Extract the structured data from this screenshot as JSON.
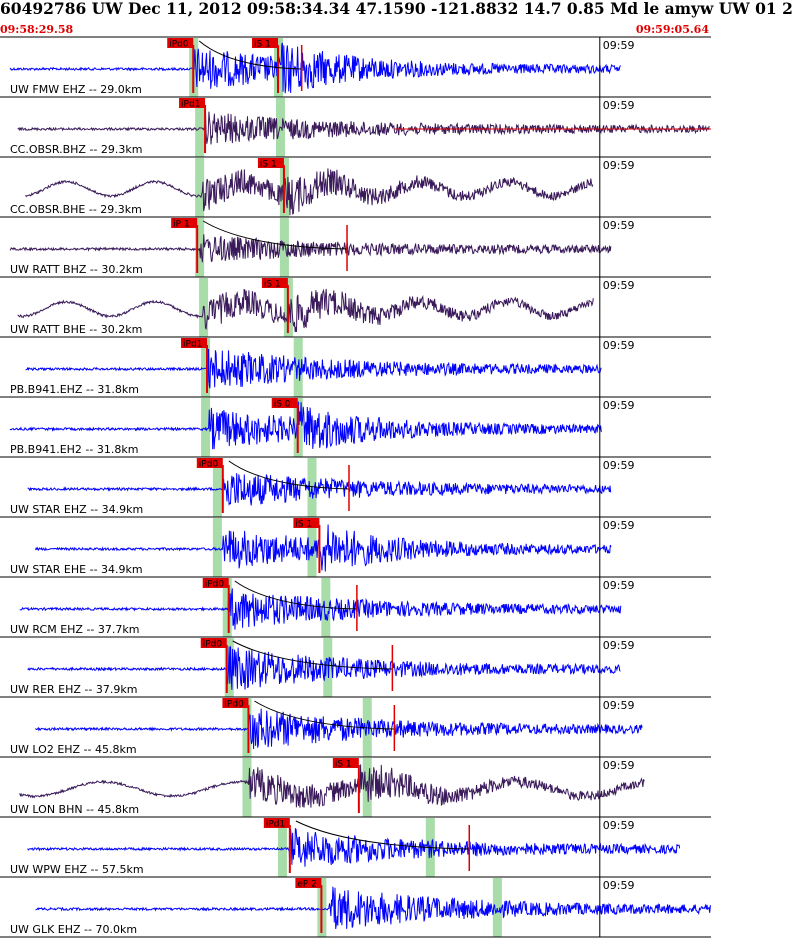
{
  "header": {
    "title": "60492786 UW Dec 11, 2012 09:58:34.34    47.1590 -121.8832 14.7 0.85 Md le amyw UW 01    2",
    "start_time": "09:58:29.58",
    "end_time": "09:59:05.64"
  },
  "colors": {
    "trace_blue": "#0000ff",
    "trace_purple": "#3a1a5a",
    "pick_red": "#e00000",
    "window_green": "#a8dca8",
    "header_red": "#e00000"
  },
  "chart_data": {
    "type": "line",
    "title": "60492786 UW Dec 11, 2012 09:58:34.34",
    "x_range": [
      "09:58:29.58",
      "09:59:05.64"
    ],
    "tick_label": "09:59",
    "series": [
      {
        "station": "UW FMW EHZ -- 29.0km",
        "distance_km": 29.0,
        "color": "blue",
        "onset_s": 9.8,
        "end_s": 31.5,
        "amp": 0.32,
        "p_pick": {
          "label": "iPd0",
          "t_s": 9.8
        },
        "s_pick": {
          "label": "iS 1",
          "t_s": 14.1
        },
        "green_windows_s": [
          9.8,
          14.1
        ],
        "coda_marker_s": 15.3
      },
      {
        "station": "CC.OBSR.BHZ -- 29.3km",
        "distance_km": 29.3,
        "color": "purple",
        "onset_s": 10.4,
        "end_s": 36.0,
        "amp": 0.24,
        "p_pick": {
          "label": "iPd1",
          "t_s": 10.4
        },
        "s_pick": null,
        "green_windows_s": [
          10.1,
          14.2
        ],
        "red_tail_from_s": 20.0
      },
      {
        "station": "CC.OBSR.BHE -- 29.3km",
        "distance_km": 29.3,
        "color": "purple",
        "onset_s": 10.2,
        "end_s": 30.1,
        "amp": 0.22,
        "p_pick": null,
        "s_pick": {
          "label": "iS 1",
          "t_s": 14.4
        },
        "green_windows_s": [
          10.1,
          14.4
        ]
      },
      {
        "station": "UW RATT BHZ -- 30.2km",
        "distance_km": 30.2,
        "color": "purple",
        "onset_s": 10.1,
        "end_s": 31.0,
        "amp": 0.2,
        "p_pick": {
          "label": "iP 1",
          "t_s": 10.0
        },
        "s_pick": null,
        "green_windows_s": [
          10.1,
          14.4
        ],
        "coda_marker_s": 17.6
      },
      {
        "station": "UW RATT BHE -- 30.2km",
        "distance_km": 30.2,
        "color": "purple",
        "onset_s": 10.3,
        "end_s": 30.1,
        "amp": 0.22,
        "p_pick": null,
        "s_pick": {
          "label": "iS 1",
          "t_s": 14.6
        },
        "green_windows_s": [
          10.3,
          14.6
        ]
      },
      {
        "station": "PB.B941.EHZ -- 31.8km",
        "distance_km": 31.8,
        "color": "blue",
        "onset_s": 10.5,
        "end_s": 30.5,
        "amp": 0.32,
        "p_pick": {
          "label": "iPd1",
          "t_s": 10.5
        },
        "s_pick": null,
        "green_windows_s": [
          10.4,
          15.1
        ]
      },
      {
        "station": "PB.B941.EH2 -- 31.8km",
        "distance_km": 31.8,
        "color": "blue",
        "onset_s": 10.6,
        "end_s": 30.5,
        "amp": 0.3,
        "p_pick": null,
        "s_pick": {
          "label": "iS 0",
          "t_s": 15.1
        },
        "green_windows_s": [
          10.4,
          15.1
        ]
      },
      {
        "station": "UW STAR EHZ -- 34.9km",
        "distance_km": 34.9,
        "color": "blue",
        "onset_s": 11.3,
        "end_s": 31.0,
        "amp": 0.28,
        "p_pick": {
          "label": "iPd0",
          "t_s": 11.3
        },
        "s_pick": null,
        "green_windows_s": [
          11.0,
          15.8
        ],
        "coda_marker_s": 17.7
      },
      {
        "station": "UW STAR EHE -- 34.9km",
        "distance_km": 34.9,
        "color": "blue",
        "onset_s": 11.3,
        "end_s": 31.0,
        "amp": 0.3,
        "p_pick": null,
        "s_pick": {
          "label": "iS 1",
          "t_s": 16.2
        },
        "green_windows_s": [
          11.0,
          15.8
        ]
      },
      {
        "station": "UW RCM EHZ -- 37.7km",
        "distance_km": 37.7,
        "color": "blue",
        "onset_s": 11.6,
        "end_s": 31.5,
        "amp": 0.3,
        "p_pick": {
          "label": "iPd0",
          "t_s": 11.6
        },
        "s_pick": null,
        "green_windows_s": [
          11.5,
          16.5
        ],
        "coda_marker_s": 18.1
      },
      {
        "station": "UW RER EHZ -- 37.9km",
        "distance_km": 37.9,
        "color": "blue",
        "onset_s": 11.5,
        "end_s": 31.5,
        "amp": 0.34,
        "p_pick": {
          "label": "iPd0",
          "t_s": 11.5
        },
        "s_pick": null,
        "green_windows_s": [
          11.6,
          16.6
        ],
        "coda_marker_s": 19.9
      },
      {
        "station": "UW LO2 EHZ -- 45.8km",
        "distance_km": 45.8,
        "color": "blue",
        "onset_s": 12.6,
        "end_s": 32.6,
        "amp": 0.32,
        "p_pick": {
          "label": "iPd0",
          "t_s": 12.6
        },
        "s_pick": null,
        "green_windows_s": [
          12.5,
          18.6
        ],
        "coda_marker_s": 20.0
      },
      {
        "station": "UW LON BHN -- 45.8km",
        "distance_km": 45.8,
        "color": "purple",
        "onset_s": 12.6,
        "end_s": 32.7,
        "amp": 0.24,
        "p_pick": null,
        "s_pick": {
          "label": "iS 1",
          "t_s": 18.2
        },
        "green_windows_s": [
          12.5,
          18.6
        ]
      },
      {
        "station": "UW WPW EHZ -- 57.5km",
        "distance_km": 57.5,
        "color": "blue",
        "onset_s": 14.7,
        "end_s": 34.5,
        "amp": 0.3,
        "p_pick": {
          "label": "iPd1",
          "t_s": 14.7
        },
        "s_pick": null,
        "green_windows_s": [
          14.3,
          21.8
        ],
        "coda_marker_s": 23.8
      },
      {
        "station": "UW GLK EHZ -- 70.0km",
        "distance_km": 70.0,
        "color": "blue",
        "onset_s": 16.7,
        "end_s": 36.06,
        "amp": 0.34,
        "p_pick": {
          "label": "eP 2",
          "t_s": 16.3
        },
        "s_pick": null,
        "green_windows_s": [
          16.3,
          25.2
        ]
      }
    ]
  }
}
